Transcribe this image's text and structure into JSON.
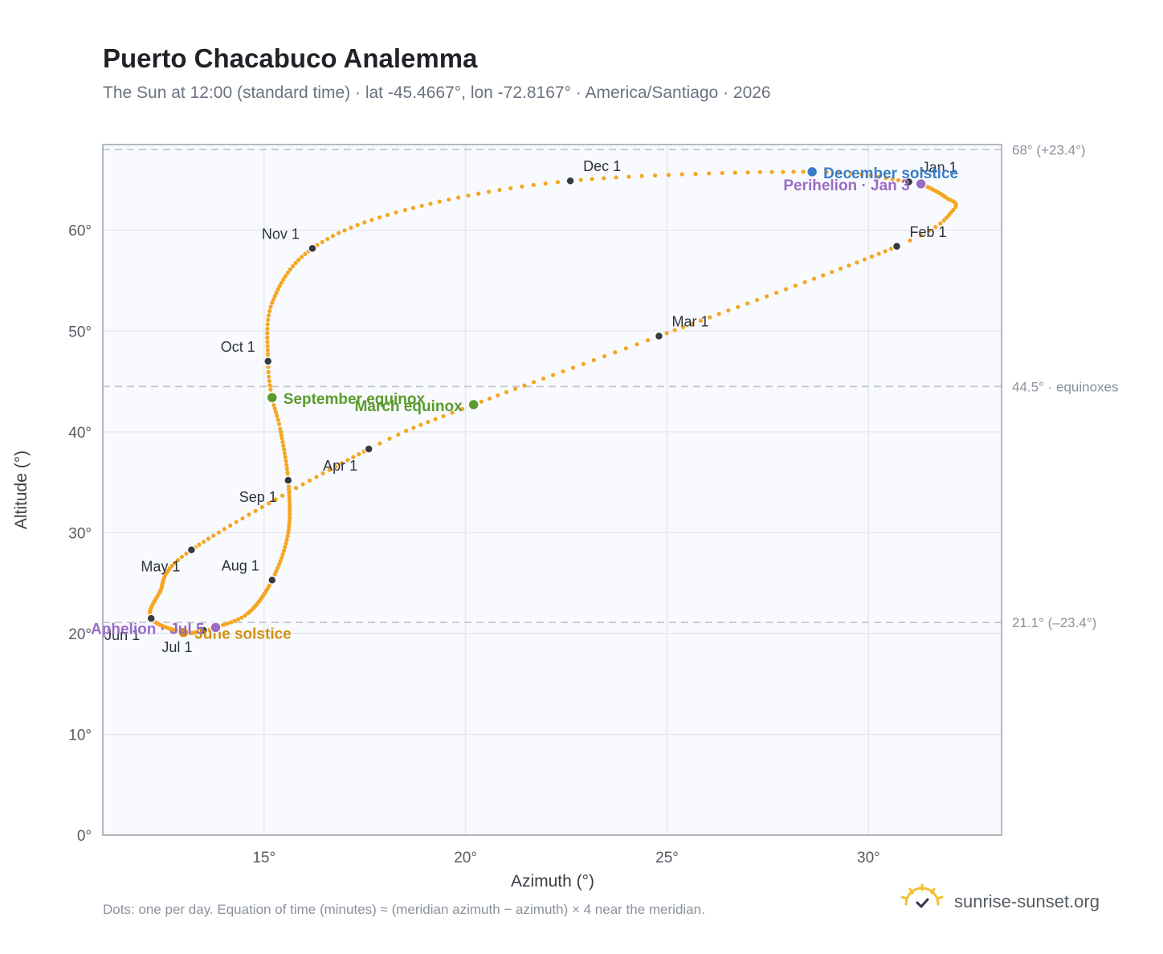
{
  "title": "Puerto Chacabuco Analemma",
  "subtitle": "The Sun at 12:00 (standard time) · lat -45.4667°, lon -72.8167° · America/Santiago · 2026",
  "footnote": "Dots: one per day. Equation of time (minutes) ≈ (meridian azimuth − azimuth) × 4 near the meridian.",
  "brand": {
    "text": "sunrise-sunset.org",
    "icon": "sun-logo-icon"
  },
  "colors": {
    "curve": "#f5a623",
    "month_dot": "#343a40",
    "june_solstice": "#d4900f",
    "december_solstice": "#3a7dc9",
    "equinox": "#5a9a2f",
    "apsis": "#9a6bc4",
    "reference_line": "#c3c8cf",
    "grid": "#e6e9ed",
    "plot_bg": "#f8fafd",
    "plot_border": "#9aa3af"
  },
  "chart_data": {
    "type": "scatter",
    "xlabel": "Azimuth (°)",
    "ylabel": "Altitude (°)",
    "xlim": [
      11.0,
      33.3
    ],
    "ylim": [
      0,
      68.5
    ],
    "x_ticks": [
      15,
      20,
      25,
      30
    ],
    "x_tick_labels": [
      "15°",
      "20°",
      "25°",
      "30°"
    ],
    "y_ticks": [
      0,
      10,
      20,
      30,
      40,
      50,
      60
    ],
    "y_tick_labels": [
      "0°",
      "10°",
      "20°",
      "30°",
      "40°",
      "50°",
      "60°"
    ],
    "grid": true,
    "reference_lines": [
      {
        "y": 68.0,
        "label": "68° (+23.4°)"
      },
      {
        "y": 44.5,
        "label": "44.5° · equinoxes"
      },
      {
        "y": 21.1,
        "label": "21.1° (–23.4°)"
      }
    ],
    "series_anchor_points": [
      {
        "date": "Jan 1",
        "az": 31.0,
        "alt": 64.8
      },
      {
        "date": "Jan 3",
        "az": 31.3,
        "alt": 64.6
      },
      {
        "date": "Jan 15",
        "az": 31.9,
        "alt": 63.3
      },
      {
        "date": "Jan 22",
        "az": 32.1,
        "alt": 62.0
      },
      {
        "date": "Feb 1",
        "az": 30.7,
        "alt": 58.4
      },
      {
        "date": "Mar 1",
        "az": 24.8,
        "alt": 49.5
      },
      {
        "date": "Mar 20",
        "az": 20.2,
        "alt": 42.7
      },
      {
        "date": "Apr 1",
        "az": 17.6,
        "alt": 38.3
      },
      {
        "date": "May 1",
        "az": 13.2,
        "alt": 28.3
      },
      {
        "date": "May 20",
        "az": 12.4,
        "alt": 24.0
      },
      {
        "date": "Jun 1",
        "az": 12.2,
        "alt": 21.5
      },
      {
        "date": "Jun 21",
        "az": 13.0,
        "alt": 20.1
      },
      {
        "date": "Jul 1",
        "az": 13.5,
        "alt": 20.3
      },
      {
        "date": "Jul 5",
        "az": 13.8,
        "alt": 20.6
      },
      {
        "date": "Jul 15",
        "az": 14.6,
        "alt": 22.0
      },
      {
        "date": "Aug 1",
        "az": 15.2,
        "alt": 25.3
      },
      {
        "date": "Aug 15",
        "az": 15.6,
        "alt": 30.0
      },
      {
        "date": "Sep 1",
        "az": 15.6,
        "alt": 35.2
      },
      {
        "date": "Sep 15",
        "az": 15.4,
        "alt": 40.3
      },
      {
        "date": "Sep 23",
        "az": 15.2,
        "alt": 43.4
      },
      {
        "date": "Oct 1",
        "az": 15.1,
        "alt": 47.0
      },
      {
        "date": "Oct 15",
        "az": 15.2,
        "alt": 52.8
      },
      {
        "date": "Nov 1",
        "az": 16.2,
        "alt": 58.2
      },
      {
        "date": "Nov 15",
        "az": 18.5,
        "alt": 62.0
      },
      {
        "date": "Dec 1",
        "az": 22.6,
        "alt": 64.9
      },
      {
        "date": "Dec 21",
        "az": 28.6,
        "alt": 65.8
      }
    ],
    "month_markers": [
      {
        "label": "Jan 1",
        "az": 31.0,
        "alt": 64.8,
        "pos": "right-up"
      },
      {
        "label": "Feb 1",
        "az": 30.7,
        "alt": 58.4,
        "pos": "right-up"
      },
      {
        "label": "Mar 1",
        "az": 24.8,
        "alt": 49.5,
        "pos": "right-up"
      },
      {
        "label": "Apr 1",
        "az": 17.6,
        "alt": 38.3,
        "pos": "left-down"
      },
      {
        "label": "May 1",
        "az": 13.2,
        "alt": 28.3,
        "pos": "left-down"
      },
      {
        "label": "Jun 1",
        "az": 12.2,
        "alt": 21.5,
        "pos": "left-down"
      },
      {
        "label": "Jul 1",
        "az": 13.5,
        "alt": 20.3,
        "pos": "left-down"
      },
      {
        "label": "Aug 1",
        "az": 15.2,
        "alt": 25.3,
        "pos": "left-up"
      },
      {
        "label": "Sep 1",
        "az": 15.6,
        "alt": 35.2,
        "pos": "left-down"
      },
      {
        "label": "Oct 1",
        "az": 15.1,
        "alt": 47.0,
        "pos": "left-up"
      },
      {
        "label": "Nov 1",
        "az": 16.2,
        "alt": 58.2,
        "pos": "left-up"
      },
      {
        "label": "Dec 1",
        "az": 22.6,
        "alt": 64.9,
        "pos": "right-up"
      }
    ],
    "events": [
      {
        "label": "December solstice",
        "az": 28.6,
        "alt": 65.8,
        "color_key": "december_solstice",
        "pos": "right"
      },
      {
        "label": "Perihelion · Jan 3",
        "az": 31.3,
        "alt": 64.6,
        "color_key": "apsis",
        "pos": "left"
      },
      {
        "label": "March equinox",
        "az": 20.2,
        "alt": 42.7,
        "color_key": "equinox",
        "pos": "left"
      },
      {
        "label": "September equinox",
        "az": 15.2,
        "alt": 43.4,
        "color_key": "equinox",
        "pos": "right"
      },
      {
        "label": "June solstice",
        "az": 13.0,
        "alt": 20.1,
        "color_key": "june_solstice",
        "pos": "right"
      },
      {
        "label": "Aphelion · Jul 5",
        "az": 13.8,
        "alt": 20.6,
        "color_key": "apsis",
        "pos": "left"
      }
    ]
  }
}
